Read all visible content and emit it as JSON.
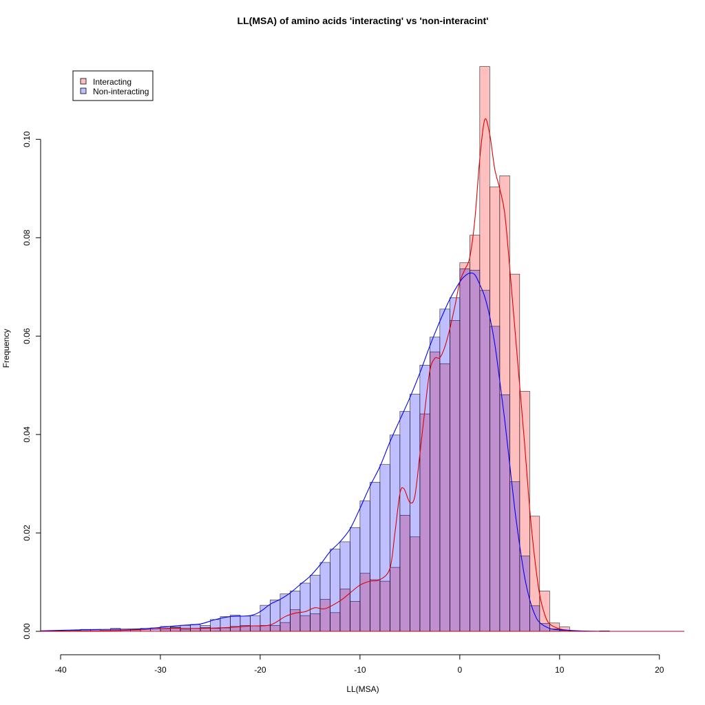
{
  "chart_data": {
    "type": "histogram",
    "title": "LL(MSA) of amino acids 'interacting' vs 'non-interacint'",
    "xlabel": "LL(MSA)",
    "ylabel": "Frequency",
    "xlim": [
      -42,
      22.5
    ],
    "ylim": [
      0,
      0.116
    ],
    "x_ticks": [
      "-40",
      "-30",
      "-20",
      "-10",
      "0",
      "10",
      "20"
    ],
    "y_ticks": [
      "0.00",
      "0.02",
      "0.04",
      "0.06",
      "0.08",
      "0.10"
    ],
    "x_tick_values": [
      -40,
      -30,
      -20,
      -10,
      0,
      10,
      20
    ],
    "y_tick_values": [
      0,
      0.02,
      0.04,
      0.06,
      0.08,
      0.1
    ],
    "bin_width": 1,
    "legend": {
      "position": "top-left",
      "entries": [
        {
          "label": "Interacting",
          "color": "#FF9999"
        },
        {
          "label": "Non-interacting",
          "color": "#9999FF"
        }
      ]
    },
    "series": [
      {
        "name": "Interacting",
        "fill_color": "#FF0000",
        "fill_opacity": 0.25,
        "line_color": "#DD0000",
        "bins": [
          {
            "x0": -30,
            "value": 0.0005
          },
          {
            "x0": -29,
            "value": 0.0008
          },
          {
            "x0": -28,
            "value": 0.0004
          },
          {
            "x0": -27,
            "value": 0.0006
          },
          {
            "x0": -26,
            "value": 0.0008
          },
          {
            "x0": -25,
            "value": 0.0006
          },
          {
            "x0": -24,
            "value": 0.0007
          },
          {
            "x0": -23,
            "value": 0.001
          },
          {
            "x0": -22,
            "value": 0.0012
          },
          {
            "x0": -21,
            "value": 0.0011
          },
          {
            "x0": -20,
            "value": 0.0012
          },
          {
            "x0": -19,
            "value": 0.0012
          },
          {
            "x0": -18,
            "value": 0.0018
          },
          {
            "x0": -17,
            "value": 0.0044
          },
          {
            "x0": -16,
            "value": 0.0032
          },
          {
            "x0": -15,
            "value": 0.0036
          },
          {
            "x0": -14,
            "value": 0.0065
          },
          {
            "x0": -13,
            "value": 0.0038
          },
          {
            "x0": -12,
            "value": 0.0086
          },
          {
            "x0": -11,
            "value": 0.0061
          },
          {
            "x0": -10,
            "value": 0.0118
          },
          {
            "x0": -9,
            "value": 0.0105
          },
          {
            "x0": -8,
            "value": 0.0102
          },
          {
            "x0": -7,
            "value": 0.013
          },
          {
            "x0": -6,
            "value": 0.0236
          },
          {
            "x0": -5,
            "value": 0.0192
          },
          {
            "x0": -4,
            "value": 0.0442
          },
          {
            "x0": -3,
            "value": 0.0568
          },
          {
            "x0": -2,
            "value": 0.0544
          },
          {
            "x0": -1,
            "value": 0.0632
          },
          {
            "x0": 0,
            "value": 0.0749
          },
          {
            "x0": 1,
            "value": 0.0805
          },
          {
            "x0": 2,
            "value": 0.1148
          },
          {
            "x0": 3,
            "value": 0.0903
          },
          {
            "x0": 4,
            "value": 0.0926
          },
          {
            "x0": 5,
            "value": 0.0726
          },
          {
            "x0": 6,
            "value": 0.0488
          },
          {
            "x0": 7,
            "value": 0.0234
          },
          {
            "x0": 8,
            "value": 0.0082
          },
          {
            "x0": 9,
            "value": 0.0017
          },
          {
            "x0": 10,
            "value": 0.0009
          }
        ],
        "density": [
          [
            -42,
            0.0
          ],
          [
            -36,
            0.0001
          ],
          [
            -32,
            0.0003
          ],
          [
            -29,
            0.0006
          ],
          [
            -26,
            0.0006
          ],
          [
            -23,
            0.0008
          ],
          [
            -21,
            0.0011
          ],
          [
            -19,
            0.0013
          ],
          [
            -17.5,
            0.003
          ],
          [
            -16.5,
            0.0037
          ],
          [
            -15.5,
            0.004
          ],
          [
            -14.5,
            0.0048
          ],
          [
            -13.5,
            0.0046
          ],
          [
            -12,
            0.0062
          ],
          [
            -11,
            0.0078
          ],
          [
            -10,
            0.0094
          ],
          [
            -9,
            0.0102
          ],
          [
            -8,
            0.0105
          ],
          [
            -7,
            0.0128
          ],
          [
            -6.5,
            0.02
          ],
          [
            -6,
            0.028
          ],
          [
            -5.6,
            0.029
          ],
          [
            -5,
            0.0262
          ],
          [
            -4.5,
            0.0275
          ],
          [
            -4,
            0.036
          ],
          [
            -3.5,
            0.045
          ],
          [
            -3,
            0.053
          ],
          [
            -2.5,
            0.0555
          ],
          [
            -2,
            0.0556
          ],
          [
            -1.5,
            0.0578
          ],
          [
            -1,
            0.0615
          ],
          [
            -0.5,
            0.066
          ],
          [
            0,
            0.071
          ],
          [
            0.5,
            0.0735
          ],
          [
            1,
            0.076
          ],
          [
            1.5,
            0.0835
          ],
          [
            2,
            0.096
          ],
          [
            2.5,
            0.104
          ],
          [
            3,
            0.101
          ],
          [
            3.5,
            0.094
          ],
          [
            4,
            0.09
          ],
          [
            4.5,
            0.085
          ],
          [
            5,
            0.074
          ],
          [
            5.5,
            0.062
          ],
          [
            6,
            0.05
          ],
          [
            6.5,
            0.038
          ],
          [
            7,
            0.025
          ],
          [
            7.5,
            0.015
          ],
          [
            8,
            0.0075
          ],
          [
            8.5,
            0.0035
          ],
          [
            9,
            0.0015
          ],
          [
            10,
            0.0005
          ],
          [
            11,
            0.0002
          ],
          [
            13,
            0.0
          ],
          [
            22.5,
            0.0
          ]
        ]
      },
      {
        "name": "Non-interacting",
        "fill_color": "#0000FF",
        "fill_opacity": 0.25,
        "line_color": "#0000EE",
        "bins": [
          {
            "x0": -41,
            "value": 0.0001
          },
          {
            "x0": -40,
            "value": 0.0001
          },
          {
            "x0": -39,
            "value": 0.0002
          },
          {
            "x0": -38,
            "value": 0.0004
          },
          {
            "x0": -37,
            "value": 0.0004
          },
          {
            "x0": -36,
            "value": 0.0002
          },
          {
            "x0": -35,
            "value": 0.0006
          },
          {
            "x0": -34,
            "value": 0.0004
          },
          {
            "x0": -33,
            "value": 0.0004
          },
          {
            "x0": -32,
            "value": 0.0006
          },
          {
            "x0": -31,
            "value": 0.0007
          },
          {
            "x0": -30,
            "value": 0.001
          },
          {
            "x0": -29,
            "value": 0.0009
          },
          {
            "x0": -28,
            "value": 0.0012
          },
          {
            "x0": -27,
            "value": 0.0014
          },
          {
            "x0": -26,
            "value": 0.0012
          },
          {
            "x0": -25,
            "value": 0.0024
          },
          {
            "x0": -24,
            "value": 0.003
          },
          {
            "x0": -23,
            "value": 0.0033
          },
          {
            "x0": -22,
            "value": 0.0031
          },
          {
            "x0": -21,
            "value": 0.0032
          },
          {
            "x0": -20,
            "value": 0.0053
          },
          {
            "x0": -19,
            "value": 0.0064
          },
          {
            "x0": -18,
            "value": 0.0076
          },
          {
            "x0": -17,
            "value": 0.0082
          },
          {
            "x0": -16,
            "value": 0.0098
          },
          {
            "x0": -15,
            "value": 0.0114
          },
          {
            "x0": -14,
            "value": 0.014
          },
          {
            "x0": -13,
            "value": 0.0167
          },
          {
            "x0": -12,
            "value": 0.0182
          },
          {
            "x0": -11,
            "value": 0.0211
          },
          {
            "x0": -10,
            "value": 0.0265
          },
          {
            "x0": -9,
            "value": 0.0303
          },
          {
            "x0": -8,
            "value": 0.0339
          },
          {
            "x0": -7,
            "value": 0.0399
          },
          {
            "x0": -6,
            "value": 0.0447
          },
          {
            "x0": -5,
            "value": 0.0482
          },
          {
            "x0": -4,
            "value": 0.0541
          },
          {
            "x0": -3,
            "value": 0.0598
          },
          {
            "x0": -2,
            "value": 0.0655
          },
          {
            "x0": -1,
            "value": 0.0678
          },
          {
            "x0": 0,
            "value": 0.0737
          },
          {
            "x0": 1,
            "value": 0.0734
          },
          {
            "x0": 2,
            "value": 0.0693
          },
          {
            "x0": 3,
            "value": 0.062
          },
          {
            "x0": 4,
            "value": 0.0481
          },
          {
            "x0": 5,
            "value": 0.0304
          },
          {
            "x0": 6,
            "value": 0.0153
          },
          {
            "x0": 7,
            "value": 0.0052
          },
          {
            "x0": 8,
            "value": 0.0016
          },
          {
            "x0": 9,
            "value": 0.0005
          },
          {
            "x0": 10,
            "value": 0.0002
          },
          {
            "x0": 11,
            "value": 0.0001
          },
          {
            "x0": 14,
            "value": 0.0001
          }
        ],
        "density": [
          [
            -42,
            0.0001
          ],
          [
            -38,
            0.0003
          ],
          [
            -35,
            0.0004
          ],
          [
            -32,
            0.0005
          ],
          [
            -30,
            0.0008
          ],
          [
            -28,
            0.0012
          ],
          [
            -26,
            0.0015
          ],
          [
            -24.5,
            0.0024
          ],
          [
            -23,
            0.003
          ],
          [
            -21,
            0.0032
          ],
          [
            -20,
            0.004
          ],
          [
            -19,
            0.0055
          ],
          [
            -18,
            0.0065
          ],
          [
            -17,
            0.0078
          ],
          [
            -16,
            0.0095
          ],
          [
            -15,
            0.0112
          ],
          [
            -14,
            0.0135
          ],
          [
            -13,
            0.0162
          ],
          [
            -12,
            0.0182
          ],
          [
            -11,
            0.0208
          ],
          [
            -10,
            0.025
          ],
          [
            -9,
            0.0295
          ],
          [
            -8,
            0.0335
          ],
          [
            -7,
            0.0385
          ],
          [
            -6,
            0.043
          ],
          [
            -5,
            0.0475
          ],
          [
            -4,
            0.0525
          ],
          [
            -3,
            0.058
          ],
          [
            -2,
            0.063
          ],
          [
            -1,
            0.0675
          ],
          [
            0,
            0.071
          ],
          [
            0.5,
            0.0722
          ],
          [
            1,
            0.0728
          ],
          [
            1.5,
            0.0725
          ],
          [
            2,
            0.0705
          ],
          [
            2.5,
            0.068
          ],
          [
            3,
            0.064
          ],
          [
            3.5,
            0.0585
          ],
          [
            4,
            0.051
          ],
          [
            4.5,
            0.043
          ],
          [
            5,
            0.034
          ],
          [
            5.5,
            0.025
          ],
          [
            6,
            0.0175
          ],
          [
            6.5,
            0.011
          ],
          [
            7,
            0.0065
          ],
          [
            7.5,
            0.0035
          ],
          [
            8,
            0.0018
          ],
          [
            9,
            0.0006
          ],
          [
            10,
            0.0003
          ],
          [
            12,
            0.0001
          ],
          [
            15,
            0.0
          ],
          [
            22.5,
            0.0
          ]
        ]
      }
    ]
  }
}
